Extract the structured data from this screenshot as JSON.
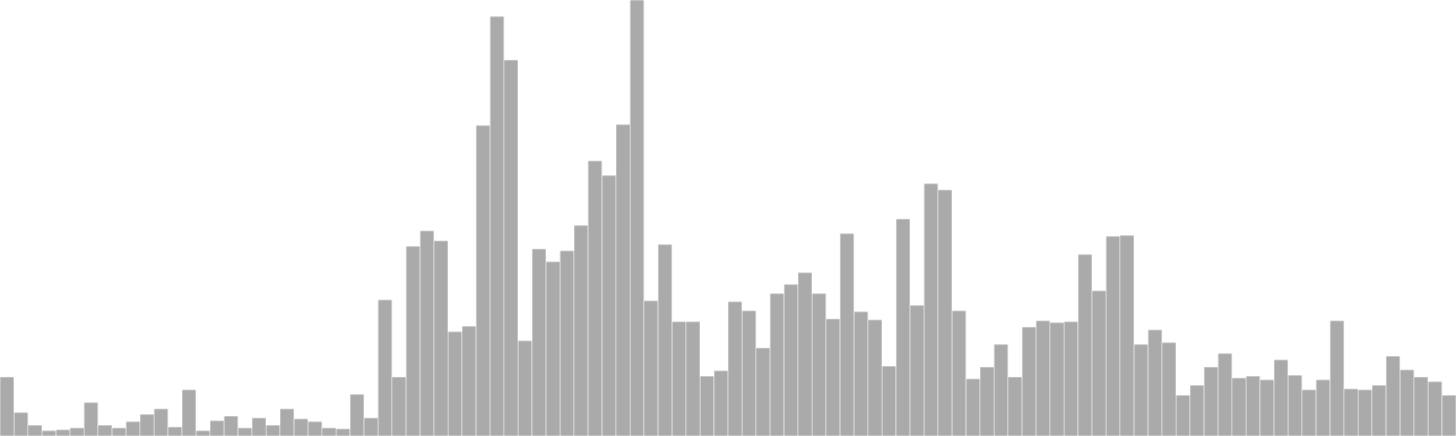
{
  "chart_data": {
    "type": "bar",
    "title": "",
    "xlabel": "",
    "ylabel": "",
    "ylim": [
      0,
      480
    ],
    "grid": false,
    "legend": "none",
    "bar_color": "#aaaaaa",
    "background": "#ffffff",
    "series": [
      {
        "values": [
          65,
          26,
          12,
          6,
          7,
          9,
          37,
          12,
          9,
          16,
          24,
          30,
          10,
          51,
          6,
          17,
          22,
          9,
          20,
          12,
          30,
          19,
          16,
          9,
          8,
          46,
          20,
          150,
          65,
          209,
          226,
          215,
          115,
          121,
          342,
          462,
          414,
          105,
          206,
          192,
          204,
          232,
          303,
          287,
          343,
          480,
          149,
          211,
          126,
          126,
          66,
          72,
          148,
          138,
          97,
          157,
          167,
          180,
          157,
          129,
          223,
          137,
          128,
          77,
          239,
          144,
          278,
          271,
          138,
          63,
          76,
          101,
          65,
          120,
          127,
          125,
          126,
          200,
          160,
          220,
          221,
          101,
          117,
          103,
          45,
          56,
          76,
          91,
          64,
          66,
          62,
          84,
          67,
          51,
          62,
          127,
          52,
          51,
          56,
          88,
          73,
          65,
          60,
          45
        ]
      }
    ]
  }
}
